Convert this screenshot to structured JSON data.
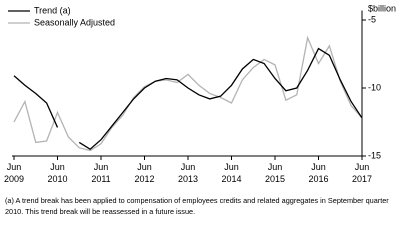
{
  "chart_data": {
    "type": "line",
    "y_label": "$billion",
    "footnote": "(a) A trend break has been applied to compensation of employees credits and related aggregates in September quarter 2010. This trend break will be reassessed in a future issue.",
    "categories": [
      "Jun 2009",
      null,
      null,
      null,
      "Jun 2010",
      null,
      null,
      null,
      "Jun 2011",
      null,
      null,
      null,
      "Jun 2012",
      null,
      null,
      null,
      "Jun 2013",
      null,
      null,
      null,
      "Jun 2014",
      null,
      null,
      null,
      "Jun 2015",
      null,
      null,
      null,
      "Jun 2016",
      null,
      null,
      null,
      "Jun 2017"
    ],
    "series": [
      {
        "name": "Trend (a)",
        "color": "#000000",
        "values": [
          -9.1,
          -9.8,
          -10.4,
          -11.1,
          -12.9,
          null,
          -14.0,
          -14.5,
          -13.8,
          -12.8,
          -11.8,
          -10.8,
          -10.0,
          -9.5,
          -9.3,
          -9.4,
          -10.0,
          -10.5,
          -10.8,
          -10.6,
          -9.8,
          -8.6,
          -7.9,
          -8.2,
          -9.3,
          -10.2,
          -10.0,
          -8.7,
          -7.1,
          -7.6,
          -9.4,
          -11.0,
          -12.2
        ]
      },
      {
        "name": "Seasonally Adjusted",
        "color": "#b3b3b3",
        "values": [
          -12.5,
          -11.0,
          -14.0,
          -13.9,
          -11.8,
          -13.6,
          -14.4,
          -14.6,
          -14.1,
          -12.9,
          -12.0,
          -10.7,
          -9.9,
          -9.5,
          -9.4,
          -9.6,
          -9.0,
          -9.8,
          -10.4,
          -10.7,
          -11.1,
          -9.4,
          -8.5,
          -7.9,
          -8.3,
          -10.9,
          -10.5,
          -6.3,
          -8.2,
          -6.9,
          -9.5,
          -11.3,
          -12.2
        ]
      }
    ],
    "ylim": [
      -15,
      -4.3
    ],
    "yticks": [
      -5,
      -10,
      -15
    ],
    "grid": false
  }
}
